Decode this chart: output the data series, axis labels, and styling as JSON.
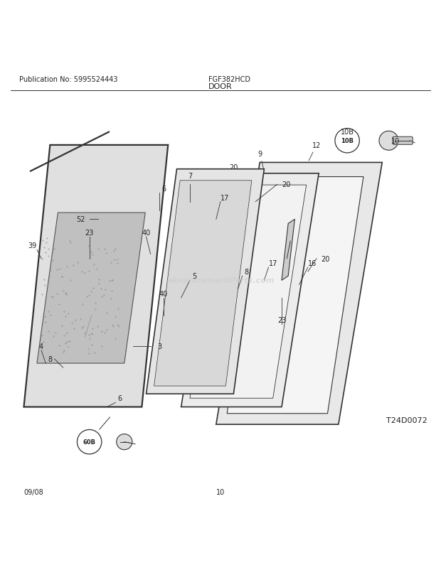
{
  "title": "DOOR",
  "pub_no": "Publication No: 5995524443",
  "model": "FGF382HCD",
  "date": "09/08",
  "page": "10",
  "diagram_id": "T24D0072",
  "watermark": "eReplacementParts.com",
  "bg_color": "#ffffff",
  "line_color": "#333333"
}
